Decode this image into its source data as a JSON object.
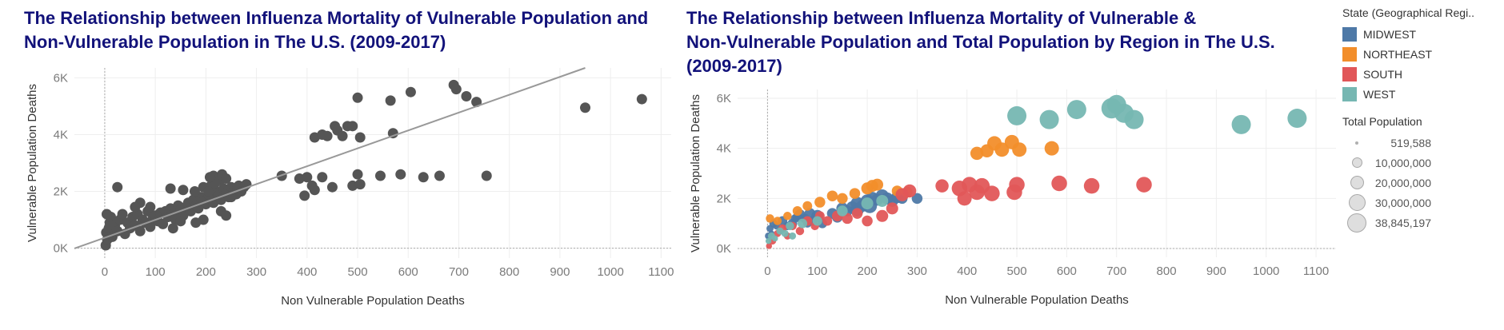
{
  "charts": [
    {
      "id": "left",
      "title_lines": [
        "The Relationship between Influenza Mortality of Vulnerable Population and",
        "Non-Vulnerable Population in The U.S. (2009-2017)"
      ]
    },
    {
      "id": "right",
      "title_lines": [
        "The Relationship between Influenza Mortality of Vulnerable &",
        "Non-Vulnerable Population and Total Population by Region in The U.S.",
        "(2009-2017)"
      ]
    }
  ],
  "legend": {
    "color_title": "State (Geographical Regi..",
    "color_items": [
      {
        "label": "MIDWEST",
        "color": "#4e79a7"
      },
      {
        "label": "NORTHEAST",
        "color": "#f28e2b"
      },
      {
        "label": "SOUTH",
        "color": "#e15759"
      },
      {
        "label": "WEST",
        "color": "#76b7b2"
      }
    ],
    "size_title": "Total Population",
    "size_items": [
      "519,588",
      "10,000,000",
      "20,000,000",
      "30,000,000",
      "38,845,197"
    ]
  },
  "chart_data": [
    {
      "type": "scatter",
      "title": "The Relationship between Influenza Mortality of Vulnerable Population and Non-Vulnerable Population in The U.S. (2009-2017)",
      "xlabel": "Non Vulnerable Population Deaths",
      "ylabel": "Vulnerable Population Deaths",
      "xlim": [
        -60,
        1120
      ],
      "ylim": [
        -350,
        6350
      ],
      "x_ticks": [
        0,
        100,
        200,
        300,
        400,
        500,
        600,
        700,
        800,
        900,
        1000,
        1100
      ],
      "x_tick_labels": [
        "0",
        "100",
        "200",
        "300",
        "400",
        "500",
        "600",
        "700",
        "800",
        "900",
        "1000",
        "1100"
      ],
      "y_ticks": [
        0,
        2000,
        4000,
        6000
      ],
      "y_tick_labels": [
        "0K",
        "2K",
        "4K",
        "6K"
      ],
      "point_color": "#555555",
      "trend_line": {
        "color": "#999999",
        "points": [
          [
            -60,
            -10
          ],
          [
            950,
            6350
          ]
        ]
      },
      "points": [
        [
          2,
          100
        ],
        [
          5,
          300
        ],
        [
          3,
          550
        ],
        [
          8,
          700
        ],
        [
          10,
          900
        ],
        [
          12,
          1100
        ],
        [
          4,
          1200
        ],
        [
          15,
          400
        ],
        [
          20,
          800
        ],
        [
          25,
          600
        ],
        [
          30,
          1000
        ],
        [
          35,
          1200
        ],
        [
          40,
          500
        ],
        [
          45,
          900
        ],
        [
          50,
          700
        ],
        [
          55,
          1100
        ],
        [
          60,
          800
        ],
        [
          65,
          1200
        ],
        [
          70,
          600
        ],
        [
          75,
          1000
        ],
        [
          80,
          900
        ],
        [
          85,
          1300
        ],
        [
          90,
          750
        ],
        [
          95,
          1050
        ],
        [
          100,
          1150
        ],
        [
          105,
          950
        ],
        [
          110,
          1250
        ],
        [
          115,
          850
        ],
        [
          120,
          1300
        ],
        [
          125,
          1100
        ],
        [
          130,
          1400
        ],
        [
          135,
          1200
        ],
        [
          140,
          1000
        ],
        [
          145,
          1500
        ],
        [
          150,
          1350
        ],
        [
          155,
          1150
        ],
        [
          160,
          1450
        ],
        [
          165,
          1600
        ],
        [
          170,
          1300
        ],
        [
          175,
          1700
        ],
        [
          180,
          1500
        ],
        [
          185,
          1400
        ],
        [
          190,
          1800
        ],
        [
          195,
          1650
        ],
        [
          200,
          1550
        ],
        [
          205,
          1900
        ],
        [
          210,
          1750
        ],
        [
          215,
          1600
        ],
        [
          220,
          2000
        ],
        [
          225,
          1850
        ],
        [
          230,
          1700
        ],
        [
          235,
          2100
        ],
        [
          240,
          1950
        ],
        [
          245,
          1800
        ],
        [
          250,
          2150
        ],
        [
          255,
          2050
        ],
        [
          260,
          1900
        ],
        [
          265,
          2200
        ],
        [
          270,
          2000
        ],
        [
          275,
          2150
        ],
        [
          280,
          2250
        ],
        [
          215,
          2550
        ],
        [
          228,
          2400
        ],
        [
          232,
          2600
        ],
        [
          210,
          2200
        ],
        [
          240,
          2450
        ],
        [
          195,
          1000
        ],
        [
          180,
          900
        ],
        [
          230,
          1300
        ],
        [
          240,
          1150
        ],
        [
          135,
          700
        ],
        [
          150,
          950
        ],
        [
          90,
          1450
        ],
        [
          70,
          1600
        ],
        [
          60,
          1450
        ],
        [
          25,
          2150
        ],
        [
          130,
          2100
        ],
        [
          155,
          2050
        ],
        [
          178,
          2000
        ],
        [
          195,
          2150
        ],
        [
          205,
          2000
        ],
        [
          218,
          2300
        ],
        [
          208,
          2500
        ],
        [
          250,
          1800
        ],
        [
          262,
          2100
        ],
        [
          350,
          2550
        ],
        [
          385,
          2450
        ],
        [
          400,
          2500
        ],
        [
          395,
          1850
        ],
        [
          410,
          2200
        ],
        [
          415,
          2050
        ],
        [
          430,
          2500
        ],
        [
          450,
          2150
        ],
        [
          490,
          2200
        ],
        [
          500,
          2600
        ],
        [
          505,
          2250
        ],
        [
          545,
          2550
        ],
        [
          585,
          2600
        ],
        [
          630,
          2500
        ],
        [
          662,
          2550
        ],
        [
          755,
          2550
        ],
        [
          415,
          3900
        ],
        [
          430,
          4000
        ],
        [
          440,
          3950
        ],
        [
          455,
          4300
        ],
        [
          460,
          4150
        ],
        [
          470,
          3950
        ],
        [
          480,
          4300
        ],
        [
          490,
          4300
        ],
        [
          505,
          3900
        ],
        [
          570,
          4050
        ],
        [
          500,
          5300
        ],
        [
          565,
          5200
        ],
        [
          605,
          5500
        ],
        [
          690,
          5750
        ],
        [
          695,
          5600
        ],
        [
          715,
          5350
        ],
        [
          735,
          5150
        ],
        [
          950,
          4950
        ],
        [
          1062,
          5250
        ]
      ]
    },
    {
      "type": "scatter",
      "title": "The Relationship between Influenza Mortality of Vulnerable & Non-Vulnerable Population and Total Population by Region in The U.S. (2009-2017)",
      "xlabel": "Non Vulnerable Population Deaths",
      "ylabel": "Vulnerable Population Deaths",
      "xlim": [
        -60,
        1140
      ],
      "ylim": [
        -350,
        6350
      ],
      "x_ticks": [
        0,
        100,
        200,
        300,
        400,
        500,
        600,
        700,
        800,
        900,
        1000,
        1100
      ],
      "x_tick_labels": [
        "0",
        "100",
        "200",
        "300",
        "400",
        "500",
        "600",
        "700",
        "800",
        "900",
        "1000",
        "1100"
      ],
      "y_ticks": [
        0,
        2000,
        4000,
        6000
      ],
      "y_tick_labels": [
        "0K",
        "2K",
        "4K",
        "6K"
      ],
      "series": [
        {
          "name": "MIDWEST",
          "color": "#4e79a7",
          "points": [
            [
              2,
              500,
              6
            ],
            [
              5,
              800,
              6
            ],
            [
              8,
              600,
              5
            ],
            [
              12,
              1000,
              7
            ],
            [
              18,
              900,
              6
            ],
            [
              25,
              700,
              6
            ],
            [
              30,
              1100,
              8
            ],
            [
              40,
              900,
              7
            ],
            [
              50,
              1000,
              8
            ],
            [
              55,
              1200,
              7
            ],
            [
              60,
              1250,
              8
            ],
            [
              65,
              1350,
              9
            ],
            [
              75,
              1200,
              8
            ],
            [
              80,
              1000,
              7
            ],
            [
              85,
              1400,
              9
            ],
            [
              90,
              1100,
              8
            ],
            [
              100,
              1300,
              10
            ],
            [
              110,
              1000,
              8
            ],
            [
              130,
              1400,
              9
            ],
            [
              140,
              1250,
              9
            ],
            [
              150,
              1600,
              10
            ],
            [
              160,
              1500,
              9
            ],
            [
              170,
              1650,
              10
            ],
            [
              180,
              1800,
              11
            ],
            [
              190,
              1700,
              10
            ],
            [
              200,
              1900,
              11
            ],
            [
              210,
              2000,
              11
            ],
            [
              220,
              1950,
              10
            ],
            [
              230,
              2100,
              11
            ],
            [
              240,
              2000,
              10
            ],
            [
              250,
              1900,
              10
            ],
            [
              260,
              2050,
              10
            ],
            [
              270,
              2000,
              9
            ],
            [
              300,
              2000,
              9
            ],
            [
              180,
              1550,
              11
            ],
            [
              205,
              1700,
              12
            ]
          ]
        },
        {
          "name": "NORTHEAST",
          "color": "#f28e2b",
          "points": [
            [
              5,
              1200,
              7
            ],
            [
              20,
              1100,
              7
            ],
            [
              40,
              1300,
              7
            ],
            [
              60,
              1500,
              8
            ],
            [
              80,
              1700,
              8
            ],
            [
              105,
              1850,
              9
            ],
            [
              130,
              2100,
              9
            ],
            [
              150,
              2000,
              9
            ],
            [
              175,
              2200,
              9
            ],
            [
              200,
              2400,
              10
            ],
            [
              210,
              2500,
              10
            ],
            [
              220,
              2550,
              10
            ],
            [
              260,
              2300,
              9
            ],
            [
              280,
              2250,
              9
            ],
            [
              420,
              3800,
              11
            ],
            [
              440,
              3900,
              11
            ],
            [
              455,
              4200,
              12
            ],
            [
              470,
              3950,
              12
            ],
            [
              490,
              4250,
              12
            ],
            [
              505,
              3950,
              12
            ],
            [
              570,
              4000,
              12
            ]
          ]
        },
        {
          "name": "SOUTH",
          "color": "#e15759",
          "points": [
            [
              3,
              100,
              5
            ],
            [
              10,
              300,
              6
            ],
            [
              20,
              600,
              6
            ],
            [
              30,
              800,
              7
            ],
            [
              40,
              500,
              6
            ],
            [
              50,
              900,
              7
            ],
            [
              65,
              700,
              7
            ],
            [
              80,
              1100,
              8
            ],
            [
              95,
              900,
              7
            ],
            [
              105,
              1300,
              8
            ],
            [
              120,
              1100,
              8
            ],
            [
              140,
              1300,
              9
            ],
            [
              160,
              1200,
              9
            ],
            [
              180,
              1400,
              9
            ],
            [
              200,
              1100,
              9
            ],
            [
              230,
              1300,
              10
            ],
            [
              250,
              1600,
              10
            ],
            [
              270,
              2150,
              11
            ],
            [
              285,
              2300,
              11
            ],
            [
              350,
              2500,
              11
            ],
            [
              385,
              2400,
              13
            ],
            [
              395,
              2000,
              12
            ],
            [
              405,
              2550,
              13
            ],
            [
              420,
              2250,
              13
            ],
            [
              430,
              2500,
              13
            ],
            [
              450,
              2200,
              13
            ],
            [
              495,
              2250,
              13
            ],
            [
              500,
              2550,
              13
            ],
            [
              585,
              2600,
              13
            ],
            [
              650,
              2500,
              13
            ],
            [
              755,
              2550,
              13
            ]
          ]
        },
        {
          "name": "WEST",
          "color": "#76b7b2",
          "points": [
            [
              2,
              300,
              5
            ],
            [
              8,
              500,
              6
            ],
            [
              15,
              400,
              5
            ],
            [
              25,
              700,
              6
            ],
            [
              35,
              600,
              6
            ],
            [
              45,
              900,
              7
            ],
            [
              50,
              500,
              6
            ],
            [
              70,
              1000,
              8
            ],
            [
              100,
              1100,
              8
            ],
            [
              150,
              1500,
              9
            ],
            [
              200,
              1800,
              10
            ],
            [
              230,
              1900,
              10
            ],
            [
              500,
              5300,
              16
            ],
            [
              565,
              5150,
              16
            ],
            [
              620,
              5550,
              16
            ],
            [
              690,
              5600,
              17
            ],
            [
              700,
              5750,
              16
            ],
            [
              715,
              5400,
              16
            ],
            [
              735,
              5150,
              16
            ],
            [
              950,
              4950,
              16
            ],
            [
              1062,
              5200,
              16
            ]
          ]
        }
      ]
    }
  ]
}
